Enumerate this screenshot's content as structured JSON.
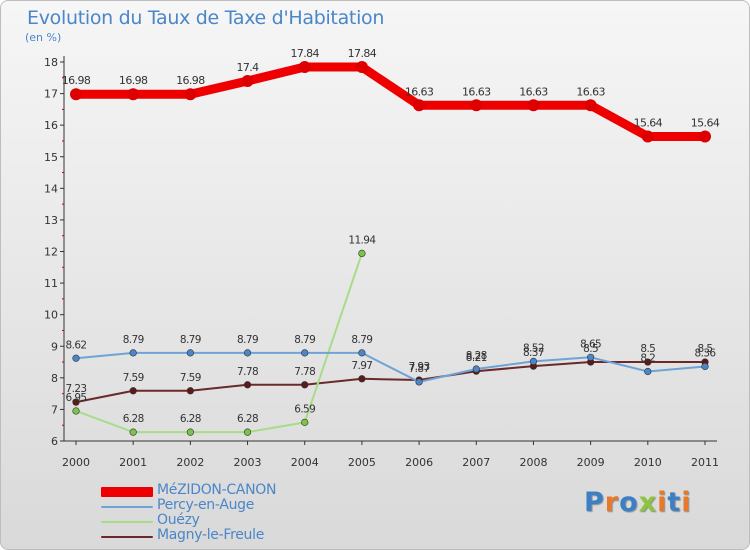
{
  "header": {
    "title": "Evolution du Taux de Taxe d'Habitation",
    "unit": "(en %)"
  },
  "brand": {
    "text": "Proxiti",
    "letters": [
      "P",
      "r",
      "o",
      "x",
      "i",
      "t",
      "i"
    ],
    "colors": [
      "#3d7fc4",
      "#e8782a",
      "#3d7fc4",
      "#8cc63f",
      "#e8782a",
      "#3d7fc4",
      "#e8782a"
    ]
  },
  "chart_data": {
    "type": "line",
    "title": "Evolution du Taux de Taxe d'Habitation",
    "ylabel": "(en %)",
    "xlabel": "",
    "x": [
      "2000",
      "2001",
      "2002",
      "2003",
      "2004",
      "2005",
      "2006",
      "2007",
      "2008",
      "2009",
      "2010",
      "2011"
    ],
    "ylim": [
      6,
      18
    ],
    "yticks": [
      "6",
      "7",
      "8",
      "9",
      "10",
      "11",
      "12",
      "13",
      "14",
      "15",
      "16",
      "17",
      "18"
    ],
    "grid": false,
    "legend_position": "bottom-left",
    "series": [
      {
        "name": "MéZIDON-CANON",
        "color": "#ee0000",
        "marker": "#dd0000",
        "values": [
          16.98,
          16.98,
          16.98,
          17.4,
          17.84,
          17.84,
          16.63,
          16.63,
          16.63,
          16.63,
          15.64,
          15.64
        ],
        "labels": [
          "16.98",
          "16.98",
          "16.98",
          "17.4",
          "17.84",
          "17.84",
          "16.63",
          "16.63",
          "16.63",
          "16.63",
          "15.64",
          "15.64"
        ]
      },
      {
        "name": "Percy-en-Auge",
        "color": "#6fa3d6",
        "marker": "#4a86c8",
        "values": [
          8.62,
          8.79,
          8.79,
          8.79,
          8.79,
          8.79,
          7.87,
          8.28,
          8.52,
          8.65,
          8.2,
          8.36
        ],
        "labels": [
          "8.62",
          "8.79",
          "8.79",
          "8.79",
          "8.79",
          "8.79",
          "7.87",
          "8.28",
          "8.52",
          "8.65",
          "8.2",
          "8.36"
        ]
      },
      {
        "name": "Ouézy",
        "color": "#a8dc88",
        "marker": "#7cc444",
        "values": [
          6.95,
          6.28,
          6.28,
          6.28,
          6.59,
          11.94,
          null,
          null,
          null,
          null,
          null,
          null
        ],
        "labels": [
          "6.95",
          "6.28",
          "6.28",
          "6.28",
          "6.59",
          "11.94",
          "",
          "",
          "",
          "",
          "",
          ""
        ]
      },
      {
        "name": "Magny-le-Freule",
        "color": "#6b2a2a",
        "marker": "#5c1a1a",
        "values": [
          7.23,
          7.59,
          7.59,
          7.78,
          7.78,
          7.97,
          7.93,
          8.21,
          8.37,
          8.5,
          8.5,
          8.5
        ],
        "labels": [
          "7.23",
          "7.59",
          "7.59",
          "7.78",
          "7.78",
          "7.97",
          "7.93",
          "8.21",
          "8.37",
          "8.5",
          "8.5",
          "8.5"
        ]
      }
    ]
  }
}
